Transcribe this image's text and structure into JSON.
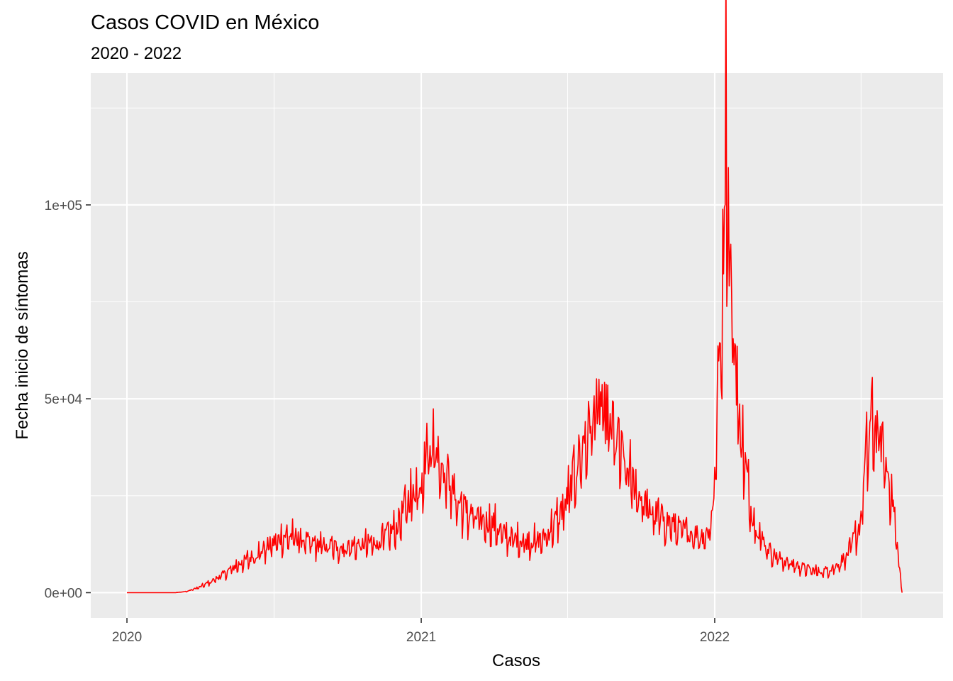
{
  "chart_data": {
    "type": "line",
    "title": "Casos COVID en México",
    "subtitle": "2020 - 2022",
    "xlabel": "Casos",
    "ylabel": "Fecha inicio de síntomas",
    "x_axis": {
      "type": "date",
      "range": [
        "2019-11-17",
        "2022-10-12"
      ],
      "ticks": [
        "2020",
        "2021",
        "2022"
      ]
    },
    "y_axis": {
      "range": [
        -6500,
        134000
      ],
      "ticks": [
        0,
        50000,
        100000
      ],
      "tick_labels": [
        "0e+00",
        "5e+04",
        "1e+05"
      ]
    },
    "grid": true,
    "legend": "none",
    "series_color": "#ff0000",
    "panel_background": "#ebebeb",
    "grid_color": "#ffffff",
    "series": [
      {
        "x": [
          "2020-01-01",
          "2020-02-01",
          "2020-03-01",
          "2020-03-15",
          "2020-04-01",
          "2020-04-15",
          "2020-05-01",
          "2020-05-15",
          "2020-06-01",
          "2020-06-15",
          "2020-07-01",
          "2020-07-15",
          "2020-08-01",
          "2020-08-15",
          "2020-09-01",
          "2020-09-15",
          "2020-10-01",
          "2020-10-15",
          "2020-11-01",
          "2020-11-15",
          "2020-12-01",
          "2020-12-15",
          "2021-01-01",
          "2021-01-08",
          "2021-01-15",
          "2021-02-01",
          "2021-02-15",
          "2021-03-01",
          "2021-03-15",
          "2021-04-01",
          "2021-04-15",
          "2021-05-01",
          "2021-05-15",
          "2021-06-01",
          "2021-06-15",
          "2021-07-01",
          "2021-07-15",
          "2021-08-01",
          "2021-08-08",
          "2021-08-15",
          "2021-09-01",
          "2021-09-15",
          "2021-10-01",
          "2021-10-15",
          "2021-11-01",
          "2021-11-15",
          "2021-12-01",
          "2021-12-15",
          "2021-12-25",
          "2022-01-01",
          "2022-01-05",
          "2022-01-10",
          "2022-01-15",
          "2022-01-20",
          "2022-02-01",
          "2022-02-15",
          "2022-03-01",
          "2022-03-15",
          "2022-04-01",
          "2022-04-15",
          "2022-05-01",
          "2022-05-15",
          "2022-06-01",
          "2022-06-15",
          "2022-07-01",
          "2022-07-08",
          "2022-07-15",
          "2022-07-25",
          "2022-08-01",
          "2022-08-10",
          "2022-08-16",
          "2022-08-22"
        ],
        "y": [
          0,
          0,
          0,
          300,
          1500,
          3000,
          5000,
          7000,
          9000,
          11000,
          13000,
          15000,
          14500,
          13000,
          12500,
          12000,
          12000,
          12500,
          13000,
          14500,
          17000,
          24000,
          30000,
          38000,
          40000,
          32000,
          24000,
          21000,
          19000,
          18000,
          15000,
          14000,
          13500,
          14000,
          18000,
          24000,
          35000,
          45000,
          50000,
          48000,
          40000,
          32000,
          25000,
          21000,
          19000,
          17000,
          16000,
          15000,
          16000,
          28000,
          55000,
          75000,
          130000,
          85000,
          45000,
          22000,
          14000,
          10000,
          8000,
          7000,
          6000,
          5500,
          7000,
          10000,
          18000,
          35000,
          45000,
          42000,
          35000,
          25000,
          12000,
          0
        ]
      }
    ]
  }
}
